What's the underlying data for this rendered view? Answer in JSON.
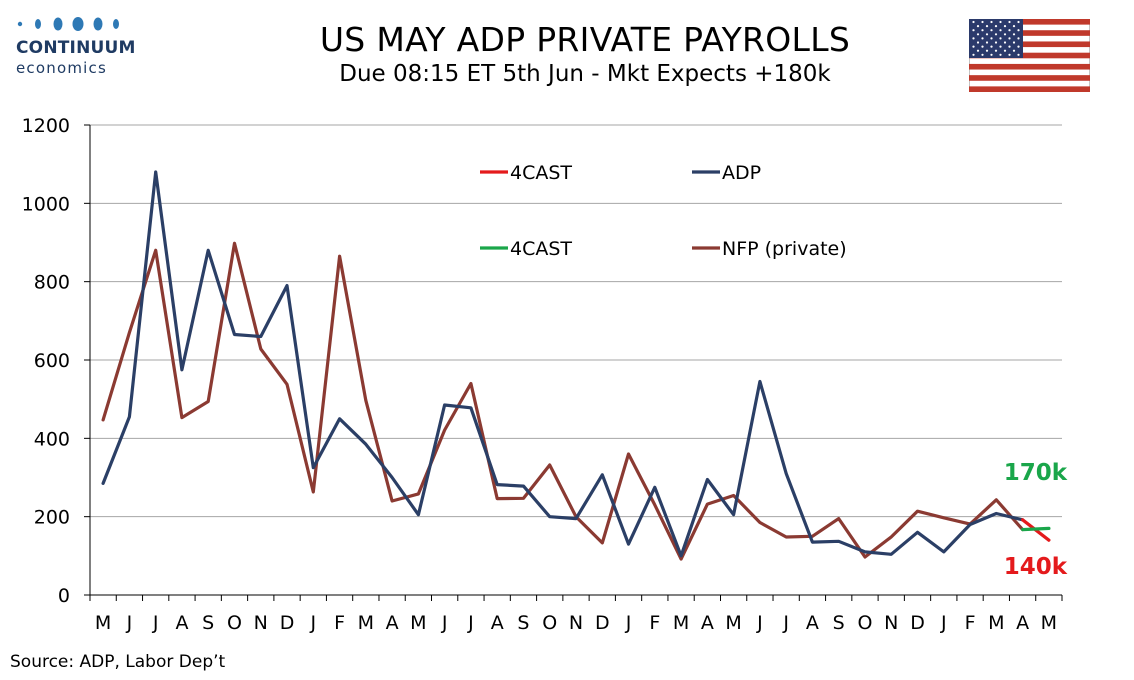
{
  "logo": {
    "word": "CONTINUUM",
    "sub": "economics"
  },
  "header": {
    "title": "US MAY ADP PRIVATE PAYROLLS",
    "subtitle": "Due 08:15 ET 5th Jun - Mkt Expects +180k"
  },
  "source": "Source: ADP, Labor Dep’t",
  "colors": {
    "adp": "#2b3f66",
    "nfp": "#8b3a32",
    "forecast_red": "#e41a1c",
    "forecast_green": "#1aa64a",
    "grid": "#a6a6a6"
  },
  "flag_icon": "us-flag-icon",
  "chart_data": {
    "type": "line",
    "categories": [
      "M",
      "J",
      "J",
      "A",
      "S",
      "O",
      "N",
      "D",
      "J",
      "F",
      "M",
      "A",
      "M",
      "J",
      "J",
      "A",
      "S",
      "O",
      "N",
      "D",
      "J",
      "F",
      "M",
      "A",
      "M",
      "J",
      "J",
      "A",
      "S",
      "O",
      "N",
      "D",
      "J",
      "F",
      "M",
      "A",
      "M"
    ],
    "ylim": [
      0,
      1200
    ],
    "yticks": [
      0,
      200,
      400,
      600,
      800,
      1000,
      1200
    ],
    "grid": true,
    "legend_position": "top-center",
    "series": [
      {
        "name": "ADP",
        "color": "#2b3f66",
        "values": [
          285,
          455,
          1080,
          575,
          880,
          665,
          660,
          790,
          325,
          450,
          385,
          300,
          205,
          485,
          478,
          282,
          278,
          200,
          195,
          307,
          130,
          275,
          100,
          295,
          205,
          545,
          310,
          135,
          137,
          110,
          104,
          160,
          110,
          180,
          208,
          192,
          null
        ]
      },
      {
        "name": "NFP (private)",
        "color": "#8b3a32",
        "values": [
          447,
          670,
          880,
          453,
          494,
          898,
          628,
          538,
          263,
          865,
          497,
          240,
          258,
          421,
          540,
          246,
          247,
          332,
          200,
          133,
          360,
          230,
          92,
          232,
          254,
          185,
          148,
          150,
          195,
          97,
          148,
          214,
          197,
          181,
          243,
          167,
          null
        ]
      },
      {
        "name": "4CAST",
        "color": "#e41a1c",
        "values": [
          null,
          null,
          null,
          null,
          null,
          null,
          null,
          null,
          null,
          null,
          null,
          null,
          null,
          null,
          null,
          null,
          null,
          null,
          null,
          null,
          null,
          null,
          null,
          null,
          null,
          null,
          null,
          null,
          null,
          null,
          null,
          null,
          null,
          null,
          null,
          192,
          140
        ]
      },
      {
        "name": "4CAST",
        "color": "#1aa64a",
        "values": [
          null,
          null,
          null,
          null,
          null,
          null,
          null,
          null,
          null,
          null,
          null,
          null,
          null,
          null,
          null,
          null,
          null,
          null,
          null,
          null,
          null,
          null,
          null,
          null,
          null,
          null,
          null,
          null,
          null,
          null,
          null,
          null,
          null,
          null,
          null,
          167,
          170
        ]
      }
    ],
    "annotations": [
      {
        "text": "170k",
        "color": "#1aa64a"
      },
      {
        "text": "140k",
        "color": "#e41a1c"
      }
    ]
  }
}
